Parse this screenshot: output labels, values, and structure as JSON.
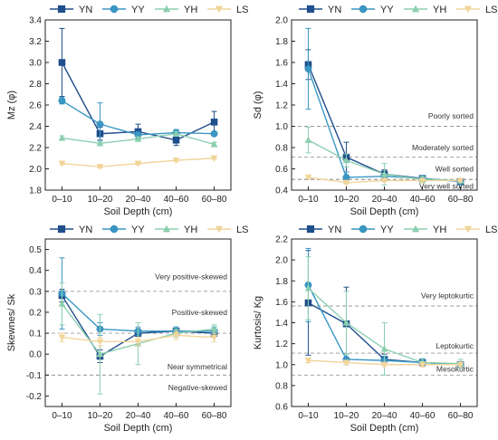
{
  "colors": {
    "YN": "#1f4e8c",
    "YY": "#3a97c4",
    "YH": "#8ccfb0",
    "LS": "#f2d59a",
    "ref": "#999999"
  },
  "chart_data": [
    {
      "type": "line",
      "categories": [
        "0–10",
        "10–20",
        "20–40",
        "40–60",
        "60–80"
      ],
      "xlabel": "Soil Depth (cm)",
      "ylabel": "Mz (φ)",
      "ylim": [
        1.8,
        3.4
      ],
      "yticks": [
        "1.8",
        "2.0",
        "2.2",
        "2.4",
        "2.6",
        "2.8",
        "3.0",
        "3.2",
        "3.4"
      ],
      "legend": "top",
      "series": [
        {
          "name": "YN",
          "values": [
            3.0,
            2.33,
            2.35,
            2.27,
            2.44
          ],
          "err": [
            0.32,
            0.06,
            0.07,
            0.05,
            0.1
          ]
        },
        {
          "name": "YY",
          "values": [
            2.64,
            2.42,
            2.32,
            2.34,
            2.33
          ],
          "err": [
            0.03,
            0.2,
            0.03,
            0.03,
            0.02
          ]
        },
        {
          "name": "YH",
          "values": [
            2.29,
            2.24,
            2.28,
            2.33,
            2.23
          ],
          "err": [
            0.02,
            0.02,
            0.02,
            0.02,
            0.02
          ]
        },
        {
          "name": "LS",
          "values": [
            2.05,
            2.02,
            2.05,
            2.08,
            2.1
          ],
          "err": [
            0.01,
            0.01,
            0.01,
            0.01,
            0.01
          ]
        }
      ],
      "ref_lines": []
    },
    {
      "type": "line",
      "categories": [
        "0–10",
        "10–20",
        "20–40",
        "40–60",
        "60–80"
      ],
      "xlabel": "Soil Depth (cm)",
      "ylabel": "Sd (φ)",
      "ylim": [
        0.4,
        2.0
      ],
      "yticks": [
        "0.4",
        "0.6",
        "0.8",
        "1.0",
        "1.2",
        "1.4",
        "1.6",
        "1.8",
        "2.0"
      ],
      "legend": "top",
      "series": [
        {
          "name": "YN",
          "values": [
            1.58,
            0.71,
            0.55,
            0.51,
            0.48
          ],
          "err": [
            0.14,
            0.14,
            0.04,
            0.02,
            0.02
          ]
        },
        {
          "name": "YY",
          "values": [
            1.54,
            0.52,
            0.53,
            0.51,
            0.48
          ],
          "err": [
            0.38,
            0.05,
            0.02,
            0.02,
            0.02
          ]
        },
        {
          "name": "YH",
          "values": [
            0.87,
            0.68,
            0.55,
            0.5,
            0.49
          ],
          "err": [
            0.12,
            0.06,
            0.1,
            0.03,
            0.02
          ]
        },
        {
          "name": "LS",
          "values": [
            0.52,
            0.47,
            0.49,
            0.49,
            0.49
          ],
          "err": [
            0.01,
            0.01,
            0.01,
            0.01,
            0.01
          ]
        }
      ],
      "ref_lines": [
        {
          "y": 1.0,
          "label": "Poorly sorted",
          "label_y": 1.1
        },
        {
          "y": 0.71,
          "label": "Moderately sorted",
          "label_y": 0.8
        },
        {
          "y": 0.5,
          "label": "Well sorted",
          "label_y": 0.6
        },
        {
          "y": 0.5,
          "label": "Very well sorted",
          "label_y": 0.44
        }
      ]
    },
    {
      "type": "line",
      "categories": [
        "0–10",
        "10–20",
        "20–40",
        "40–60",
        "60–80"
      ],
      "xlabel": "Soil Depth (cm)",
      "ylabel": "Skewnes/ Sk",
      "ylim": [
        -0.25,
        0.55
      ],
      "yticks": [
        "-0.2",
        "-0.1",
        "0.0",
        "0.1",
        "0.2",
        "0.3",
        "0.4",
        "0.5"
      ],
      "legend": "top",
      "series": [
        {
          "name": "YN",
          "values": [
            0.28,
            -0.01,
            0.1,
            0.11,
            0.1
          ],
          "err": [
            0.03,
            0.03,
            0.01,
            0.01,
            0.01
          ]
        },
        {
          "name": "YY",
          "values": [
            0.29,
            0.12,
            0.11,
            0.11,
            0.11
          ],
          "err": [
            0.17,
            0.03,
            0.02,
            0.02,
            0.02
          ]
        },
        {
          "name": "YH",
          "values": [
            0.24,
            0.0,
            0.05,
            0.1,
            0.12
          ],
          "err": [
            0.1,
            0.19,
            0.1,
            0.02,
            0.02
          ]
        },
        {
          "name": "LS",
          "values": [
            0.08,
            0.06,
            0.06,
            0.09,
            0.08
          ],
          "err": [
            0.02,
            0.02,
            0.02,
            0.02,
            0.02
          ]
        }
      ],
      "ref_lines": [
        {
          "y": 0.3,
          "label": "Very positive-skewed",
          "label_y": 0.37
        },
        {
          "y": 0.1,
          "label": "Positive-skewed",
          "label_y": 0.2
        },
        {
          "y": -0.1,
          "label": "Near symmetrical",
          "label_y": -0.06
        },
        {
          "y": -0.1,
          "label": "Negative-skewed",
          "label_y": -0.16
        }
      ]
    },
    {
      "type": "line",
      "categories": [
        "0–10",
        "10–20",
        "20–40",
        "40–60",
        "60–80"
      ],
      "xlabel": "Soil Depth (cm)",
      "ylabel": "Kurtosis/ Kg",
      "ylim": [
        0.6,
        2.2
      ],
      "yticks": [
        "0.6",
        "0.8",
        "1.0",
        "1.2",
        "1.4",
        "1.6",
        "1.8",
        "2.0",
        "2.2"
      ],
      "legend": "top",
      "series": [
        {
          "name": "YN",
          "values": [
            1.59,
            1.39,
            1.05,
            1.02,
            1.0
          ],
          "err": [
            0.5,
            0.35,
            0.05,
            0.02,
            0.02
          ]
        },
        {
          "name": "YY",
          "values": [
            1.76,
            1.05,
            1.04,
            1.02,
            1.0
          ],
          "err": [
            0.35,
            0.05,
            0.04,
            0.02,
            0.02
          ]
        },
        {
          "name": "YH",
          "values": [
            1.73,
            1.4,
            1.15,
            1.02,
            1.01
          ],
          "err": [
            0.3,
            0.3,
            0.25,
            0.04,
            0.04
          ]
        },
        {
          "name": "LS",
          "values": [
            1.04,
            1.02,
            1.0,
            1.0,
            1.0
          ],
          "err": [
            0.02,
            0.02,
            0.02,
            0.02,
            0.02
          ]
        }
      ],
      "ref_lines": [
        {
          "y": 1.56,
          "label": "Very leptokurtic",
          "label_y": 1.66
        },
        {
          "y": 1.11,
          "label": "Leptokurtic",
          "label_y": 1.18
        },
        {
          "y": 0.9,
          "label": "Mesokurtic",
          "label_y": 0.96
        }
      ]
    }
  ]
}
